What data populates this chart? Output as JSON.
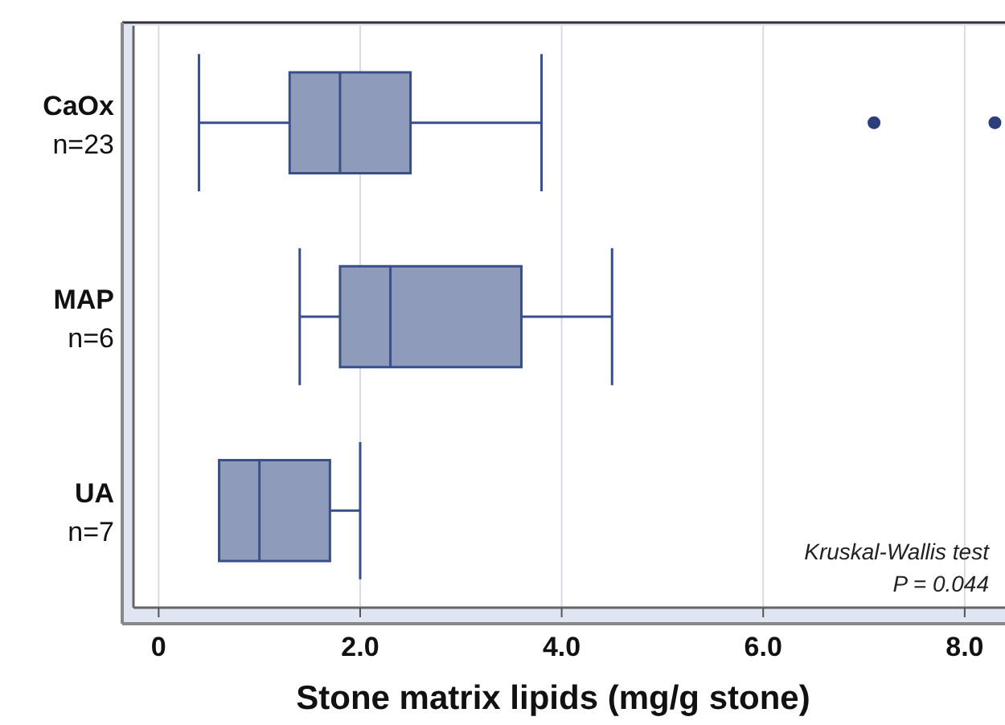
{
  "chart_data": {
    "type": "box",
    "orientation": "horizontal",
    "xlabel": "Stone matrix lipids (mg/g stone)",
    "categories": [
      "CaOx\nn=23",
      "MAP\nn=6",
      "UA\nn=7"
    ],
    "boxes": [
      {
        "low": 0.4,
        "q1": 1.3,
        "median": 1.8,
        "q3": 2.5,
        "high": 3.8,
        "outliers": [
          7.1,
          8.3
        ]
      },
      {
        "low": 1.4,
        "q1": 1.8,
        "median": 2.3,
        "q3": 3.6,
        "high": 4.5
      },
      {
        "low": 0.6,
        "q1": 0.6,
        "median": 1.0,
        "q3": 1.7,
        "high": 2.0
      }
    ],
    "color": "#8e9bbb",
    "xlim": [
      -0.25,
      8.4
    ],
    "xticks": [
      0,
      {
        "value": 2,
        "label": "2.0"
      },
      {
        "value": 4,
        "label": "4.0"
      },
      {
        "value": 6,
        "label": "6.0"
      },
      {
        "value": 8,
        "label": "8.0"
      }
    ],
    "grid": "x",
    "annotations": [
      "Kruskal-Wallis test",
      "P = 0.044"
    ]
  }
}
